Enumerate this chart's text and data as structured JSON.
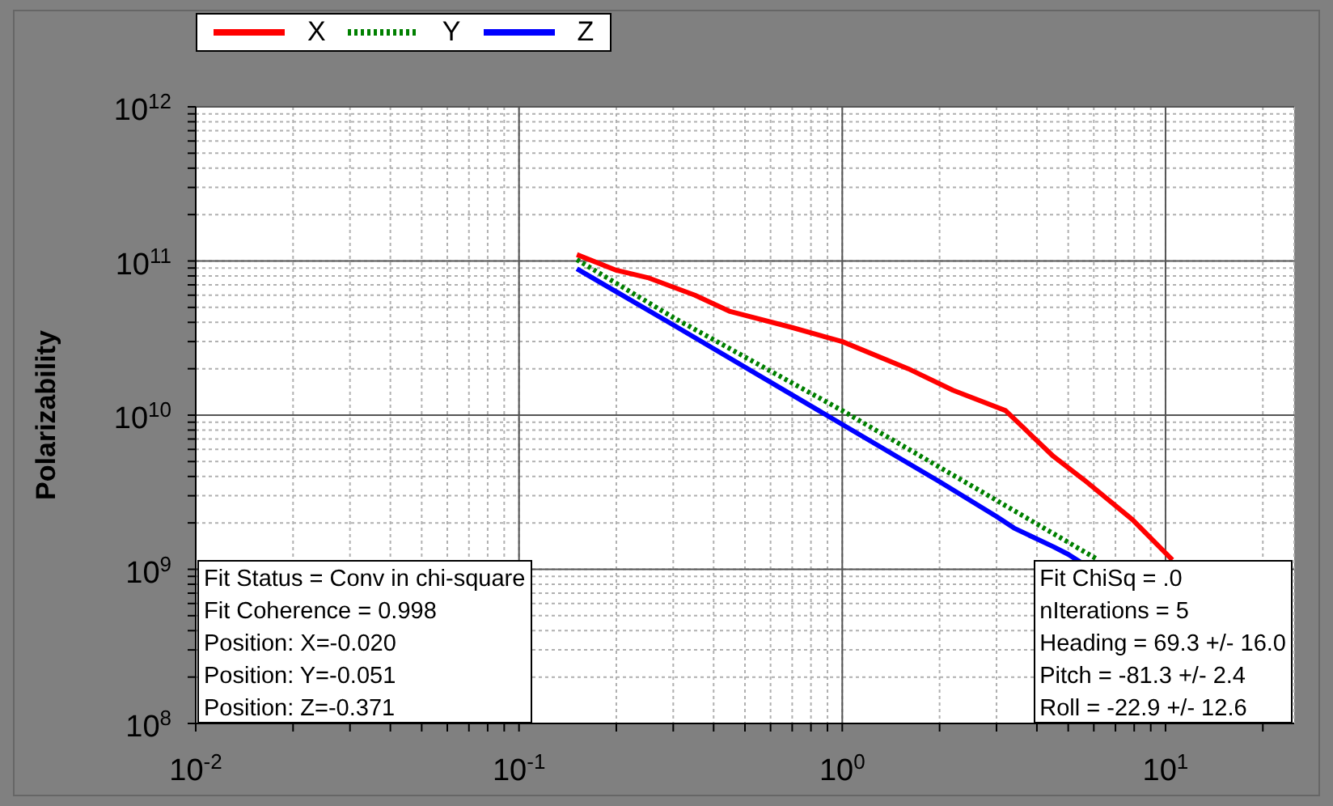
{
  "chart_data": {
    "type": "line",
    "ylabel": "Polarizability",
    "log": "xy",
    "grid": true,
    "legend": "top left",
    "xlim": [
      0.01,
      25
    ],
    "ylim": [
      100000000,
      1000000000000
    ],
    "xticks": [
      {
        "value": 0.01,
        "label": "10$^{-2}$"
      },
      {
        "value": 0.02,
        "label": null
      },
      {
        "value": 0.03,
        "label": null
      },
      {
        "value": 0.04,
        "label": null
      },
      {
        "value": 0.05,
        "label": null
      },
      {
        "value": 0.06,
        "label": null
      },
      {
        "value": 0.07,
        "label": null
      },
      {
        "value": 0.08,
        "label": null
      },
      {
        "value": 0.09,
        "label": null
      },
      {
        "value": 0.1,
        "label": "10$^{-1}$"
      },
      {
        "value": 0.2,
        "label": null
      },
      {
        "value": 0.3,
        "label": null
      },
      {
        "value": 0.4,
        "label": null
      },
      {
        "value": 0.5,
        "label": null
      },
      {
        "value": 0.6,
        "label": null
      },
      {
        "value": 0.7,
        "label": null
      },
      {
        "value": 0.8,
        "label": null
      },
      {
        "value": 0.9,
        "label": null
      },
      {
        "value": 1,
        "label": "10$^{0}$"
      },
      {
        "value": 2,
        "label": null
      },
      {
        "value": 3,
        "label": null
      },
      {
        "value": 4,
        "label": null
      },
      {
        "value": 5,
        "label": null
      },
      {
        "value": 6,
        "label": null
      },
      {
        "value": 7,
        "label": null
      },
      {
        "value": 8,
        "label": null
      },
      {
        "value": 9,
        "label": null
      },
      {
        "value": 10,
        "label": "10$^{1}$"
      },
      {
        "value": 20,
        "label": null
      }
    ],
    "yticks": [
      {
        "value": 100000000,
        "label": "10$^{8}$"
      },
      {
        "value": 200000000,
        "label": null
      },
      {
        "value": 300000000,
        "label": null
      },
      {
        "value": 400000000,
        "label": null
      },
      {
        "value": 500000000,
        "label": null
      },
      {
        "value": 600000000,
        "label": null
      },
      {
        "value": 700000000,
        "label": null
      },
      {
        "value": 800000000,
        "label": null
      },
      {
        "value": 900000000,
        "label": null
      },
      {
        "value": 1000000000,
        "label": "10$^{9}$"
      },
      {
        "value": 2000000000,
        "label": null
      },
      {
        "value": 3000000000,
        "label": null
      },
      {
        "value": 4000000000,
        "label": null
      },
      {
        "value": 5000000000,
        "label": null
      },
      {
        "value": 6000000000,
        "label": null
      },
      {
        "value": 7000000000,
        "label": null
      },
      {
        "value": 8000000000,
        "label": null
      },
      {
        "value": 9000000000,
        "label": null
      },
      {
        "value": 10000000000,
        "label": "10$^{10}$"
      },
      {
        "value": 20000000000,
        "label": null
      },
      {
        "value": 30000000000,
        "label": null
      },
      {
        "value": 40000000000,
        "label": null
      },
      {
        "value": 50000000000,
        "label": null
      },
      {
        "value": 60000000000,
        "label": null
      },
      {
        "value": 70000000000,
        "label": null
      },
      {
        "value": 80000000000,
        "label": null
      },
      {
        "value": 90000000000,
        "label": null
      },
      {
        "value": 100000000000,
        "label": "10$^{11}$"
      },
      {
        "value": 200000000000,
        "label": null
      },
      {
        "value": 300000000000,
        "label": null
      },
      {
        "value": 400000000000,
        "label": null
      },
      {
        "value": 500000000000,
        "label": null
      },
      {
        "value": 600000000000,
        "label": null
      },
      {
        "value": 700000000000,
        "label": null
      },
      {
        "value": 800000000000,
        "label": null
      },
      {
        "value": 900000000000,
        "label": null
      },
      {
        "value": 1000000000000,
        "label": "10$^{12}$"
      }
    ],
    "series": [
      {
        "name": "X",
        "color": "#ff0000",
        "line_style": "solid",
        "x": [
          0.151,
          0.2,
          0.25,
          0.35,
          0.45,
          0.7,
          1,
          1.6,
          2.2,
          3.2,
          4.5,
          5.6,
          7.9,
          10.5
        ],
        "values": [
          110000000000,
          87000000000,
          78000000000,
          60000000000,
          47000000000,
          37000000000,
          30000000000,
          20000000000,
          14500000000,
          10700000000,
          5400000000,
          3800000000,
          2100000000,
          1150000000
        ]
      },
      {
        "name": "Y",
        "color": "#008000",
        "line_style": "dotted",
        "x": [
          0.151,
          0.3,
          1,
          3,
          6.2
        ],
        "values": [
          102000000000,
          43000000000,
          10700000000,
          2800000000,
          1150000000
        ]
      },
      {
        "name": "Z",
        "color": "#0000ff",
        "line_style": "solid",
        "x": [
          0.151,
          0.3,
          1,
          2,
          3,
          3.4,
          4.5,
          5,
          5.5
        ],
        "values": [
          89000000000,
          38500000000,
          8700000000,
          3700000000,
          2200000000,
          1850000000,
          1400000000,
          1250000000,
          1100000000
        ]
      }
    ],
    "annotations": [
      "Fit Status = Conv in chi-square",
      "Fit Coherence = 0.998",
      "Position: X=-0.020",
      "Position: Y=-0.051",
      "Position: Z=-0.371",
      "Fit ChiSq = .0",
      "nIterations = 5",
      "Heading = 69.3 +/- 16.0",
      "Pitch = -81.3 +/- 2.4",
      "Roll = -22.9 +/- 12.6"
    ]
  }
}
